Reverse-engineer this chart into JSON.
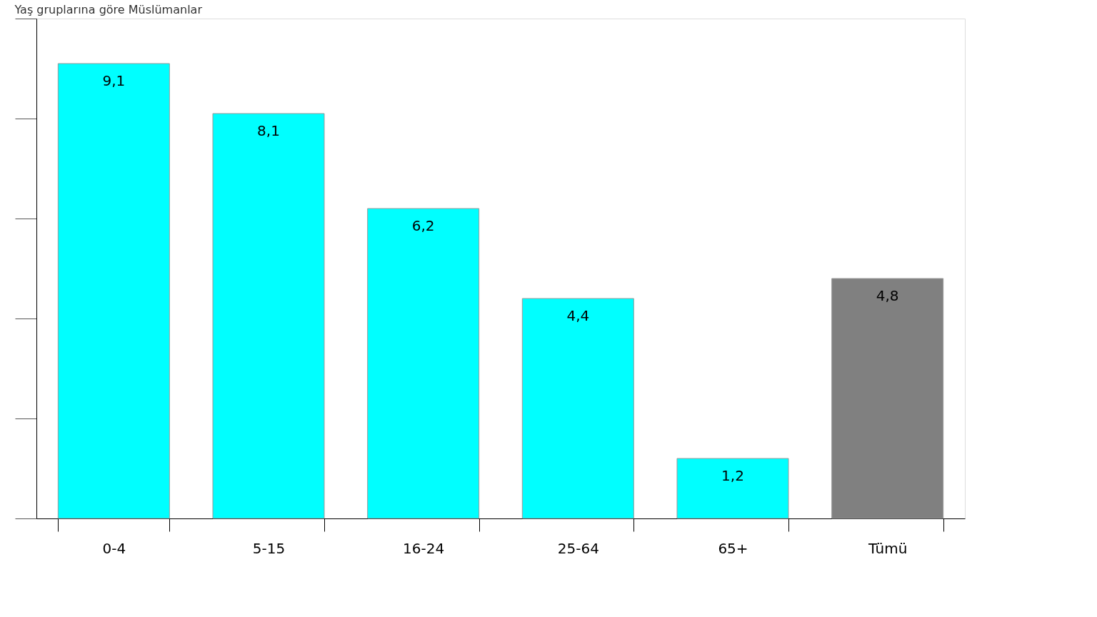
{
  "chart_data": {
    "type": "bar",
    "title": "Yaş gruplarına göre Müslümanlar",
    "categories": [
      "0-4",
      "5-15",
      "16-24",
      "25-64",
      "65+",
      "Tümü"
    ],
    "values": [
      9.1,
      8.1,
      6.2,
      4.4,
      1.2,
      4.8
    ],
    "value_labels": [
      "9,1",
      "8,1",
      "6,2",
      "4,4",
      "1,2",
      "4,8"
    ],
    "colors": [
      "#00ffff",
      "#00ffff",
      "#00ffff",
      "#00ffff",
      "#00ffff",
      "#808080"
    ],
    "ylim": [
      0,
      10
    ],
    "tick_labels": "x",
    "grid": false
  }
}
